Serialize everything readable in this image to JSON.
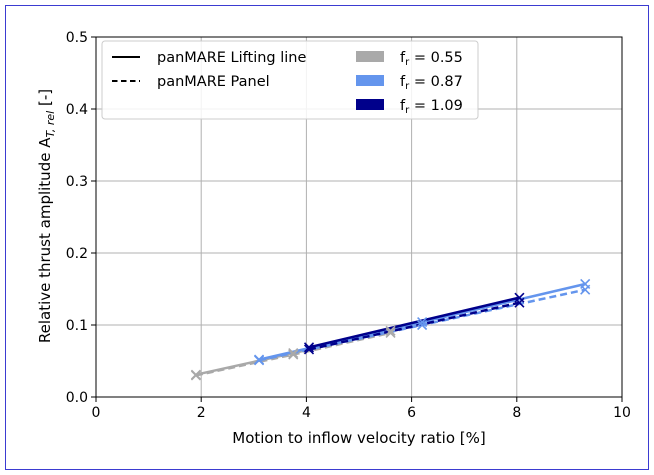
{
  "chart_data": {
    "type": "line",
    "xlabel": "Motion to inflow velocity ratio [%]",
    "ylabel": "Relative thrust amplitude A",
    "ylabel_sub": "T, rel",
    "ylabel_unit": " [-]",
    "xlim": [
      0,
      10
    ],
    "ylim": [
      0,
      0.5
    ],
    "xticks": [
      0,
      2,
      4,
      6,
      8,
      10
    ],
    "yticks": [
      0.0,
      0.1,
      0.2,
      0.3,
      0.4,
      0.5
    ],
    "xtick_labels": [
      "0",
      "2",
      "4",
      "6",
      "8",
      "10"
    ],
    "ytick_labels": [
      "0.0",
      "0.1",
      "0.2",
      "0.3",
      "0.4",
      "0.5"
    ],
    "grid": true,
    "legend_placement": "top-left",
    "legend": {
      "styles": [
        {
          "label": "panMARE Lifting line",
          "dash": "solid"
        },
        {
          "label": "panMARE Panel",
          "dash": "dashed"
        }
      ],
      "colors": [
        {
          "label": "f",
          "sub": "r",
          "value": " = 0.55",
          "color": "#a9a9a9"
        },
        {
          "label": "f",
          "sub": "r",
          "value": " = 0.87",
          "color": "#6495ed"
        },
        {
          "label": "f",
          "sub": "r",
          "value": " = 1.09",
          "color": "#00008b"
        }
      ]
    },
    "series": [
      {
        "method": "panMARE Lifting line",
        "fr": "0.55",
        "color": "#a9a9a9",
        "dash": "solid",
        "x": [
          1.9,
          3.75,
          5.6
        ],
        "y": [
          0.031,
          0.061,
          0.092
        ]
      },
      {
        "method": "panMARE Panel",
        "fr": "0.55",
        "color": "#a9a9a9",
        "dash": "dashed",
        "x": [
          1.9,
          3.75,
          5.6
        ],
        "y": [
          0.03,
          0.059,
          0.089
        ]
      },
      {
        "method": "panMARE Lifting line",
        "fr": "0.87",
        "color": "#6495ed",
        "dash": "solid",
        "x": [
          3.1,
          6.2,
          9.3
        ],
        "y": [
          0.052,
          0.104,
          0.157
        ]
      },
      {
        "method": "panMARE Panel",
        "fr": "0.87",
        "color": "#6495ed",
        "dash": "dashed",
        "x": [
          3.1,
          6.2,
          9.3
        ],
        "y": [
          0.051,
          0.1,
          0.149
        ]
      },
      {
        "method": "panMARE Lifting line",
        "fr": "1.09",
        "color": "#00008b",
        "dash": "solid",
        "x": [
          4.05,
          8.05
        ],
        "y": [
          0.069,
          0.138
        ]
      },
      {
        "method": "panMARE Panel",
        "fr": "1.09",
        "color": "#00008b",
        "dash": "dashed",
        "x": [
          4.05,
          8.05
        ],
        "y": [
          0.066,
          0.131
        ]
      }
    ]
  }
}
